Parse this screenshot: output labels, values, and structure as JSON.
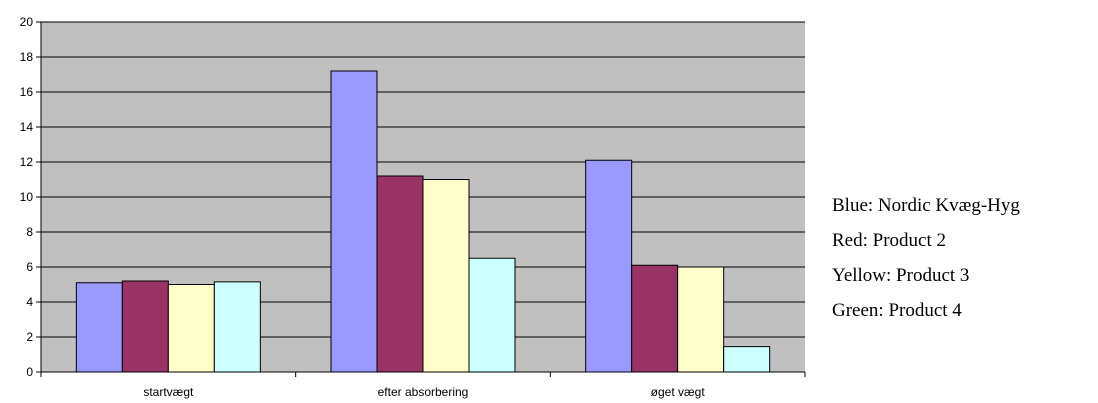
{
  "chart_data": {
    "type": "bar",
    "categories": [
      "startvægt",
      "efter absorbering",
      "øget vægt"
    ],
    "series": [
      {
        "color": "#9999ff",
        "values": [
          5.1,
          17.2,
          12.1
        ]
      },
      {
        "color": "#993366",
        "values": [
          5.2,
          11.2,
          6.1
        ]
      },
      {
        "color": "#ffffcc",
        "values": [
          5.0,
          11.0,
          6.0
        ]
      },
      {
        "color": "#ccffff",
        "values": [
          5.15,
          6.5,
          1.45
        ]
      }
    ],
    "ylim": [
      0,
      20
    ],
    "yticks": [
      0,
      2,
      4,
      6,
      8,
      10,
      12,
      14,
      16,
      18,
      20
    ],
    "plot_background": "#c0c0c0",
    "grid": true,
    "legend_position": "right"
  },
  "legend": {
    "items": [
      {
        "label": "Blue: Nordic Kvæg-Hyg"
      },
      {
        "label": "Red: Product 2"
      },
      {
        "label": "Yellow: Product 3"
      },
      {
        "label": "Green: Product 4"
      }
    ]
  }
}
